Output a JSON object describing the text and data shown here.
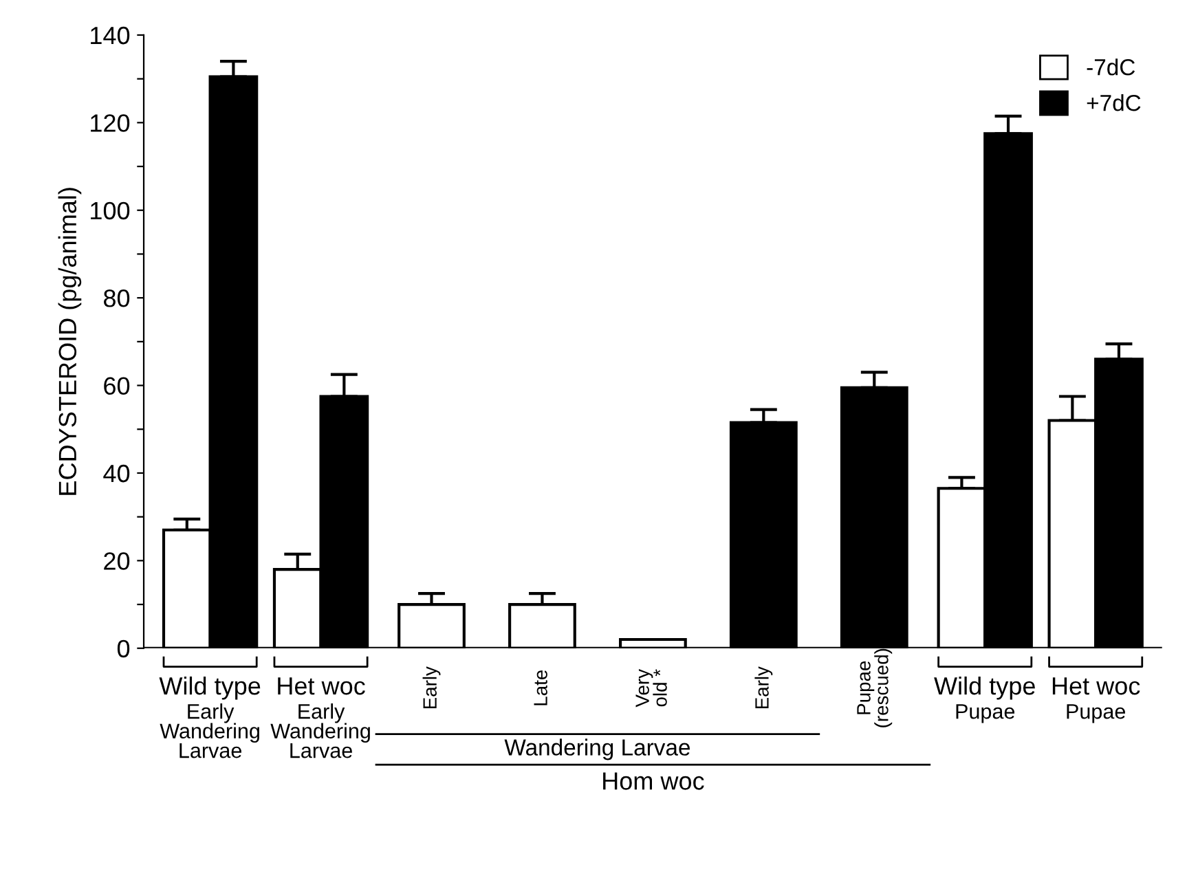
{
  "chart_data": {
    "type": "bar",
    "ylabel": "ECDYSTEROID (pg/animal)",
    "categories": [
      "Wild type\nEarly\nWandering\nLarvae",
      "Het woc\nEarly\nWandering\nLarvae",
      "Early",
      "Late",
      "Very\nold *",
      "Early",
      "Pupae\n(rescued)",
      "Wild type\nPupae",
      "Het woc\nPupae"
    ],
    "series": [
      {
        "name": "-7dC",
        "color": "#ffffff",
        "values": [
          27,
          18,
          10,
          10,
          2,
          null,
          null,
          36.5,
          52
        ],
        "errors": [
          [
            27,
            29.5
          ],
          [
            18,
            21.5
          ],
          [
            10,
            12.5
          ],
          [
            10,
            12.5
          ],
          null,
          null,
          null,
          [
            36.5,
            39
          ],
          [
            52,
            57.5
          ]
        ]
      },
      {
        "name": "+7dC",
        "color": "#000000",
        "values": [
          130.5,
          57.5,
          null,
          null,
          null,
          51.5,
          59.5,
          117.5,
          66
        ],
        "errors": [
          [
            130.5,
            134
          ],
          [
            57.5,
            62.5
          ],
          null,
          null,
          null,
          [
            51.5,
            54.5
          ],
          [
            59.5,
            63
          ],
          [
            117.5,
            121.5
          ],
          [
            66,
            69.5
          ]
        ]
      }
    ],
    "annotations": [
      "Wandering Larvae",
      "Hom woc"
    ],
    "ylim": [
      0,
      140
    ],
    "yticks": [
      0,
      {
        "value": 10,
        "label": null
      },
      20,
      {
        "value": 30,
        "label": null
      },
      40,
      {
        "value": 50,
        "label": null
      },
      60,
      {
        "value": 70,
        "label": null
      },
      80,
      {
        "value": 90,
        "label": null
      },
      100,
      {
        "value": 110,
        "label": null
      },
      120,
      {
        "value": 130,
        "label": null
      },
      140
    ],
    "legend": "top right",
    "grid": false
  }
}
